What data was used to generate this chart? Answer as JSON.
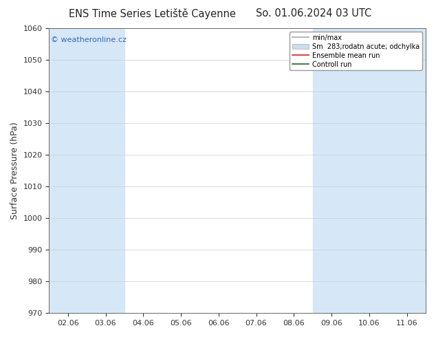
{
  "title_left": "ENS Time Series Letiště Cayenne",
  "title_right": "So. 01.06.2024 03 UTC",
  "ylabel": "Surface Pressure (hPa)",
  "ylim": [
    970,
    1060
  ],
  "yticks": [
    970,
    980,
    990,
    1000,
    1010,
    1020,
    1030,
    1040,
    1050,
    1060
  ],
  "xtick_labels": [
    "02.06",
    "03.06",
    "04.06",
    "05.06",
    "06.06",
    "07.06",
    "08.06",
    "09.06",
    "10.06",
    "11.06"
  ],
  "xtick_positions": [
    0,
    1,
    2,
    3,
    4,
    5,
    6,
    7,
    8,
    9
  ],
  "xlim": [
    -0.5,
    9.5
  ],
  "shaded_bands": [
    0,
    1,
    7,
    8,
    9
  ],
  "band_color": "#d6e8f7",
  "plot_bg_color": "#ffffff",
  "watermark_text": "© weatheronline.cz",
  "watermark_color": "#3366bb",
  "legend_entries": [
    {
      "label": "min/max",
      "color": "#aaaaaa",
      "lw": 1.2,
      "is_line": true
    },
    {
      "label": "Sm  283;rodatn acute; odchylka",
      "color": "#ccddee",
      "lw": 8,
      "is_line": false
    },
    {
      "label": "Ensemble mean run",
      "color": "#cc2222",
      "lw": 1.2,
      "is_line": true
    },
    {
      "label": "Controll run",
      "color": "#226622",
      "lw": 1.2,
      "is_line": true
    }
  ],
  "title_fontsize": 10.5,
  "tick_fontsize": 8,
  "ylabel_fontsize": 9,
  "fig_bg_color": "#ffffff"
}
